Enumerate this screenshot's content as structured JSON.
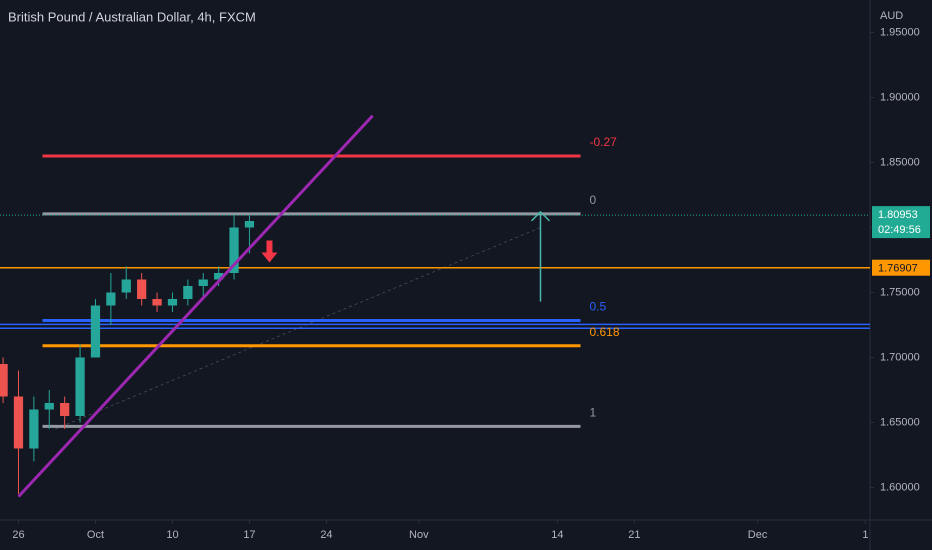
{
  "chart_data": {
    "type": "candlestick",
    "title": "British Pound / Australian Dollar, 4h, FXCM",
    "axis_label": "AUD",
    "x": [
      -1,
      0,
      1,
      2,
      3,
      4,
      5,
      6,
      7,
      8,
      9,
      10,
      11,
      12,
      13,
      14,
      15
    ],
    "open": [
      1.695,
      1.67,
      1.63,
      1.66,
      1.665,
      1.655,
      1.7,
      1.74,
      1.75,
      1.76,
      1.745,
      1.74,
      1.745,
      1.755,
      1.76,
      1.765,
      1.8
    ],
    "high": [
      1.7,
      1.69,
      1.67,
      1.675,
      1.67,
      1.71,
      1.745,
      1.765,
      1.77,
      1.765,
      1.75,
      1.75,
      1.76,
      1.765,
      1.77,
      1.81,
      1.81
    ],
    "low": [
      1.665,
      1.595,
      1.62,
      1.645,
      1.645,
      1.65,
      1.7,
      1.725,
      1.745,
      1.74,
      1.735,
      1.735,
      1.74,
      1.745,
      1.755,
      1.76,
      1.78
    ],
    "close": [
      1.67,
      1.63,
      1.66,
      1.665,
      1.655,
      1.7,
      1.74,
      1.75,
      1.76,
      1.745,
      1.74,
      1.745,
      1.755,
      1.76,
      1.765,
      1.8,
      1.805
    ],
    "up_color": "#26a69a",
    "down_color": "#ef5350",
    "xlim": [
      -1.2,
      55.3
    ],
    "xticks": [
      {
        "value": 0,
        "label": "26"
      },
      {
        "value": 5,
        "label": "Oct"
      },
      {
        "value": 10,
        "label": "10"
      },
      {
        "value": 15,
        "label": "17"
      },
      {
        "value": 20,
        "label": "24"
      },
      {
        "value": 26,
        "label": "Nov"
      },
      {
        "value": 35,
        "label": "14"
      },
      {
        "value": 40,
        "label": "21"
      },
      {
        "value": 48,
        "label": "Dec"
      },
      {
        "value": 55,
        "label": "1"
      }
    ],
    "ylim": [
      1.575,
      1.975
    ],
    "yticks": [
      {
        "value": 1.95,
        "label": "1.95000"
      },
      {
        "value": 1.9,
        "label": "1.90000"
      },
      {
        "value": 1.85,
        "label": "1.85000"
      },
      {
        "value": 1.8,
        "label": "1.80000"
      },
      {
        "value": 1.75,
        "label": "1.75000"
      },
      {
        "value": 1.7,
        "label": "1.70000"
      },
      {
        "value": 1.65,
        "label": "1.65000"
      },
      {
        "value": 1.6,
        "label": "1.60000"
      }
    ],
    "fib_x": [
      1.56,
      36.5
    ],
    "fib_levels": [
      {
        "label": "-0.27",
        "value": 1.855,
        "color": "#f23645"
      },
      {
        "label": "0",
        "value": 1.8105,
        "color": "#9598a1"
      },
      {
        "label": "0.5",
        "value": 1.7285,
        "color": "#2962ff"
      },
      {
        "label": "0.618",
        "value": 1.709,
        "color": "#ff9800"
      },
      {
        "label": "1",
        "value": 1.647,
        "color": "#9598a1"
      }
    ],
    "horizontal_lines": [
      {
        "value": 1.76907,
        "color": "#ff9800",
        "tag": true
      },
      {
        "value": 1.7255,
        "color": "#2962ff",
        "tag": false
      },
      {
        "value": 1.7225,
        "color": "#2962ff",
        "tag": false
      }
    ],
    "trendline": {
      "x": [
        0,
        23
      ],
      "y": [
        1.593,
        1.886
      ],
      "color": "#9c27b0"
    },
    "dashed_line": {
      "x": [
        2.4,
        33.9
      ],
      "y": [
        1.645,
        1.8
      ]
    },
    "target_arrow": {
      "x": 33.9,
      "from": 1.743,
      "to": 1.812,
      "color": "#4db6ac"
    },
    "signal_arrow": {
      "x": 16.3,
      "y": 1.79,
      "color": "#f23645"
    },
    "last_price": 1.80953,
    "countdown": "02:49:56",
    "last_color": "#22ab94"
  }
}
